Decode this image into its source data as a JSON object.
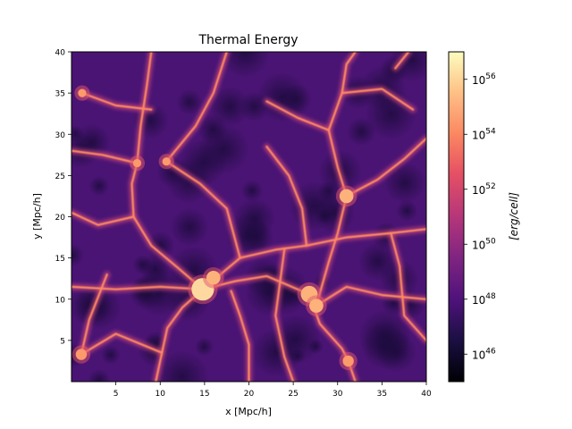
{
  "chart_data": {
    "type": "heatmap",
    "title": "Thermal Energy",
    "xlabel": "x [Mpc/h]",
    "ylabel": "y [Mpc/h]",
    "xlim": [
      0,
      40
    ],
    "ylim": [
      0,
      40
    ],
    "xticks": [
      5,
      10,
      15,
      20,
      25,
      30,
      35,
      40
    ],
    "yticks": [
      5,
      10,
      15,
      20,
      25,
      30,
      35,
      40
    ],
    "colorbar": {
      "label": "[erg/cell]",
      "scale": "log",
      "colormap": "magma",
      "range_exponent": [
        45,
        57
      ],
      "tick_exponents": [
        46,
        48,
        50,
        52,
        54,
        56
      ],
      "tick_base": "10"
    },
    "features": {
      "halos": [
        {
          "x": 14.8,
          "y": 11.2,
          "log_e": 56.5
        },
        {
          "x": 26.8,
          "y": 10.6,
          "log_e": 55.5
        },
        {
          "x": 27.6,
          "y": 9.2,
          "log_e": 55.0
        },
        {
          "x": 31.0,
          "y": 22.5,
          "log_e": 55.0
        },
        {
          "x": 31.2,
          "y": 2.5,
          "log_e": 54.5
        },
        {
          "x": 1.1,
          "y": 3.3,
          "log_e": 54.5
        },
        {
          "x": 1.2,
          "y": 35.0,
          "log_e": 54.0
        },
        {
          "x": 10.7,
          "y": 26.7,
          "log_e": 54.0
        },
        {
          "x": 7.4,
          "y": 26.5,
          "log_e": 54.0
        },
        {
          "x": 16.0,
          "y": 12.6,
          "log_e": 55.0
        }
      ],
      "filaments": [
        [
          [
            14.8,
            11.2
          ],
          [
            12.0,
            13.8
          ],
          [
            9.0,
            16.5
          ],
          [
            7.0,
            20.0
          ],
          [
            6.8,
            24.0
          ],
          [
            7.4,
            26.5
          ],
          [
            7.8,
            31.0
          ],
          [
            8.5,
            36.0
          ],
          [
            9.0,
            40.0
          ]
        ],
        [
          [
            14.8,
            11.2
          ],
          [
            10.0,
            11.5
          ],
          [
            5.0,
            11.2
          ],
          [
            0.0,
            11.5
          ]
        ],
        [
          [
            14.8,
            11.2
          ],
          [
            12.5,
            9.0
          ],
          [
            10.8,
            6.5
          ],
          [
            10.2,
            3.5
          ],
          [
            9.5,
            0.0
          ]
        ],
        [
          [
            14.8,
            11.2
          ],
          [
            19.0,
            15.0
          ],
          [
            23.0,
            16.0
          ],
          [
            26.5,
            16.5
          ],
          [
            31.0,
            17.5
          ],
          [
            36.0,
            18.0
          ],
          [
            40.0,
            18.5
          ]
        ],
        [
          [
            14.8,
            11.2
          ],
          [
            18.5,
            12.2
          ],
          [
            22.0,
            12.8
          ],
          [
            26.8,
            10.6
          ],
          [
            27.6,
            9.2
          ]
        ],
        [
          [
            26.8,
            10.6
          ],
          [
            28.0,
            7.0
          ],
          [
            30.5,
            4.0
          ],
          [
            31.2,
            2.5
          ],
          [
            32.0,
            0.0
          ]
        ],
        [
          [
            27.6,
            9.2
          ],
          [
            31.0,
            11.5
          ],
          [
            35.0,
            10.5
          ],
          [
            40.0,
            10.0
          ]
        ],
        [
          [
            31.0,
            22.5
          ],
          [
            30.0,
            26.0
          ],
          [
            29.0,
            30.5
          ],
          [
            30.5,
            35.0
          ],
          [
            31.0,
            38.5
          ],
          [
            32.0,
            40.0
          ]
        ],
        [
          [
            31.0,
            22.5
          ],
          [
            30.0,
            18.0
          ],
          [
            29.0,
            14.5
          ],
          [
            27.6,
            9.2
          ]
        ],
        [
          [
            31.0,
            22.5
          ],
          [
            34.5,
            24.5
          ],
          [
            37.5,
            27.0
          ],
          [
            40.0,
            29.5
          ]
        ],
        [
          [
            7.4,
            26.5
          ],
          [
            3.5,
            27.5
          ],
          [
            0.0,
            28.0
          ]
        ],
        [
          [
            10.7,
            26.7
          ],
          [
            14.5,
            24.0
          ],
          [
            17.5,
            21.0
          ],
          [
            19.0,
            15.0
          ]
        ],
        [
          [
            10.7,
            26.7
          ],
          [
            14.0,
            31.0
          ],
          [
            16.0,
            35.0
          ],
          [
            17.5,
            40.0
          ]
        ],
        [
          [
            1.2,
            35.0
          ],
          [
            5.0,
            33.5
          ],
          [
            9.0,
            33.0
          ]
        ],
        [
          [
            1.1,
            3.3
          ],
          [
            5.0,
            5.8
          ],
          [
            10.2,
            3.5
          ]
        ],
        [
          [
            20.0,
            0.0
          ],
          [
            20.0,
            4.5
          ],
          [
            19.0,
            8.0
          ],
          [
            18.0,
            11.0
          ]
        ],
        [
          [
            26.5,
            16.5
          ],
          [
            26.0,
            21.0
          ],
          [
            24.5,
            25.0
          ],
          [
            22.0,
            28.5
          ]
        ],
        [
          [
            29.0,
            30.5
          ],
          [
            25.5,
            32.0
          ],
          [
            22.0,
            34.0
          ]
        ],
        [
          [
            36.0,
            18.0
          ],
          [
            37.0,
            14.0
          ],
          [
            37.5,
            8.0
          ],
          [
            40.0,
            5.0
          ]
        ],
        [
          [
            38.5,
            33.0
          ],
          [
            35.0,
            35.5
          ],
          [
            30.5,
            35.0
          ]
        ],
        [
          [
            36.5,
            38.0
          ],
          [
            38.0,
            40.0
          ]
        ],
        [
          [
            24.0,
            16.0
          ],
          [
            23.0,
            8.0
          ],
          [
            24.0,
            3.0
          ],
          [
            25.0,
            0.0
          ]
        ],
        [
          [
            7.0,
            20.0
          ],
          [
            3.0,
            19.0
          ],
          [
            0.0,
            20.5
          ]
        ],
        [
          [
            4.0,
            13.0
          ],
          [
            2.0,
            7.5
          ],
          [
            1.1,
            3.3
          ]
        ]
      ]
    }
  }
}
